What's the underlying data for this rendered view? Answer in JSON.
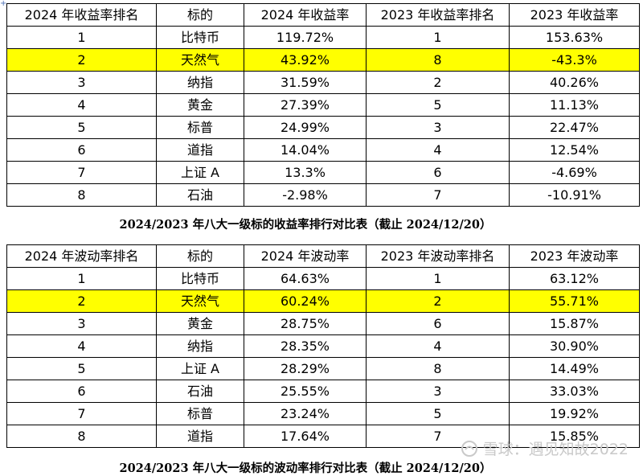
{
  "table1": {
    "headers": [
      "2024 年收益率排名",
      "标的",
      "2024 年收益率",
      "2023 年收益率排名",
      "2023 年收益率"
    ],
    "rows": [
      [
        "1",
        "比特币",
        "119.72%",
        "1",
        "153.63%"
      ],
      [
        "2",
        "天然气",
        "43.92%",
        "8",
        "-43.3%"
      ],
      [
        "3",
        "纳指",
        "31.59%",
        "2",
        "40.26%"
      ],
      [
        "4",
        "黄金",
        "27.39%",
        "5",
        "11.13%"
      ],
      [
        "5",
        "标普",
        "24.99%",
        "3",
        "22.47%"
      ],
      [
        "6",
        "道指",
        "14.04%",
        "4",
        "12.54%"
      ],
      [
        "7",
        "上证 A",
        "13.3%",
        "6",
        "-4.69%"
      ],
      [
        "8",
        "石油",
        "-2.98%",
        "7",
        "-10.91%"
      ]
    ],
    "highlight_row": 1,
    "caption": "2024/2023 年八大一级标的收益率排行对比表（截止 2024/12/20）"
  },
  "table2": {
    "headers": [
      "2024 年波动率排名",
      "标的",
      "2024 年波动率",
      "2023 年波动率排名",
      "2023 年波动率"
    ],
    "rows": [
      [
        "1",
        "比特币",
        "64.63%",
        "1",
        "63.12%"
      ],
      [
        "2",
        "天然气",
        "60.24%",
        "2",
        "55.71%"
      ],
      [
        "3",
        "黄金",
        "28.75%",
        "6",
        "15.87%"
      ],
      [
        "4",
        "纳指",
        "28.35%",
        "4",
        "30.90%"
      ],
      [
        "5",
        "上证 A",
        "28.29%",
        "8",
        "14.49%"
      ],
      [
        "6",
        "石油",
        "25.55%",
        "3",
        "33.03%"
      ],
      [
        "7",
        "标普",
        "23.24%",
        "5",
        "19.92%"
      ],
      [
        "8",
        "道指",
        "17.64%",
        "7",
        "15.85%"
      ]
    ],
    "highlight_row": 1,
    "caption": "2024/2023 年八大一级标的波动率排行对比表（截止 2024/12/20）"
  },
  "watermark": {
    "text": "雪球：遇见知故2022",
    "icon": "snowball-logo-icon"
  },
  "colors": {
    "highlight": "#ffff00",
    "border": "#000000",
    "watermark": "#c9c9c9"
  }
}
